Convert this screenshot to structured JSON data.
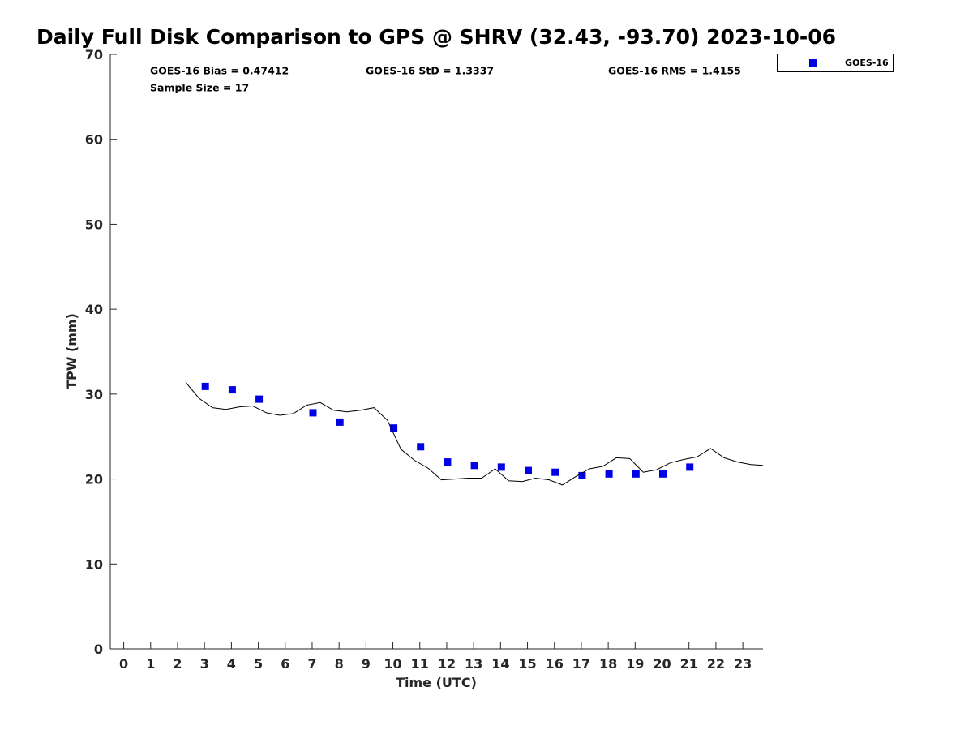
{
  "chart_data": {
    "type": "scatter",
    "title": "Daily Full Disk Comparison to GPS @ SHRV (32.43, -93.70) 2023-10-06",
    "xlabel": "Time (UTC)",
    "ylabel": "TPW (mm)",
    "xlim": [
      -0.5,
      23.75
    ],
    "ylim": [
      0,
      70
    ],
    "x_ticks": [
      0,
      1,
      2,
      3,
      4,
      5,
      6,
      7,
      8,
      9,
      10,
      11,
      12,
      13,
      14,
      15,
      16,
      17,
      18,
      19,
      20,
      21,
      22,
      23
    ],
    "y_ticks": [
      0,
      10,
      20,
      30,
      40,
      50,
      60,
      70
    ],
    "grid": false,
    "legend_position": "top-right",
    "stats": {
      "bias": "GOES-16 Bias = 0.47412",
      "std": "GOES-16 StD = 1.3337",
      "rms": "GOES-16 RMS = 1.4155",
      "sample_size": "Sample Size = 17"
    },
    "series": [
      {
        "name": "GOES-16",
        "type": "scatter",
        "color": "#0000e6",
        "marker": "square",
        "x": [
          3.03,
          4.03,
          5.03,
          7.03,
          8.03,
          10.03,
          11.03,
          12.03,
          13.03,
          14.03,
          15.03,
          16.03,
          17.03,
          18.03,
          19.03,
          20.03,
          21.03
        ],
        "y": [
          30.9,
          30.5,
          29.4,
          27.8,
          26.7,
          26.0,
          23.8,
          22.0,
          21.6,
          21.4,
          21.0,
          20.8,
          20.4,
          20.6,
          20.6,
          20.6,
          21.4
        ]
      },
      {
        "type": "line",
        "color": "#000000",
        "x": [
          2.3,
          2.8,
          3.3,
          3.8,
          4.3,
          4.8,
          5.3,
          5.8,
          6.3,
          6.8,
          7.3,
          7.8,
          8.3,
          8.8,
          9.3,
          9.8,
          10.3,
          10.8,
          11.3,
          11.8,
          12.3,
          12.8,
          13.3,
          13.8,
          14.3,
          14.8,
          15.3,
          15.8,
          16.3,
          16.8,
          17.3,
          17.8,
          18.3,
          18.8,
          19.3,
          19.8,
          20.3,
          20.8,
          21.3,
          21.8,
          22.3,
          22.8,
          23.3,
          23.75
        ],
        "y": [
          31.4,
          29.5,
          28.4,
          28.2,
          28.5,
          28.6,
          27.8,
          27.5,
          27.7,
          28.7,
          29.0,
          28.1,
          27.9,
          28.1,
          28.4,
          26.9,
          23.5,
          22.2,
          21.3,
          19.9,
          20.0,
          20.1,
          20.1,
          21.2,
          19.8,
          19.7,
          20.1,
          19.9,
          19.3,
          20.3,
          21.2,
          21.5,
          22.5,
          22.4,
          20.8,
          21.1,
          21.9,
          22.3,
          22.6,
          23.6,
          22.5,
          22.0,
          21.7,
          21.6
        ]
      }
    ]
  }
}
